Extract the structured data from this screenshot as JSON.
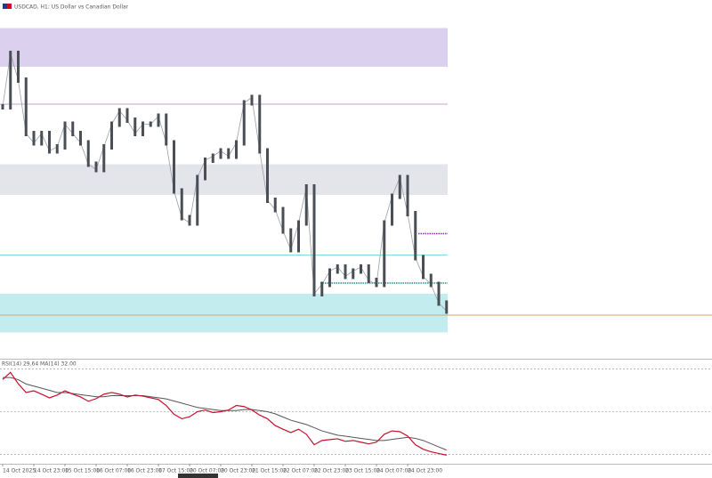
{
  "window": {
    "title": "USDCAD, H1: US Dollar vs Canadian Dollar"
  },
  "chart_data": [
    {
      "type": "candlestick",
      "categories": [
        "14 Oct 2025",
        null,
        null,
        null,
        "14 Oct 23:00",
        null,
        null,
        null,
        "15 Oct 15:00",
        null,
        null,
        null,
        "16 Oct 07:00",
        null,
        null,
        null,
        "16 Oct 23:00",
        null,
        null,
        null,
        "17 Oct 15:00",
        null,
        null,
        null,
        "20 Oct 07:00",
        null,
        null,
        null,
        "20 Oct 23:00",
        null,
        null,
        null,
        "21 Oct 15:00",
        null,
        null,
        null,
        "22 Oct 07:00",
        null,
        null,
        null,
        "22 Oct 23:00",
        null,
        null,
        null,
        "23 Oct 15:00",
        null,
        null,
        null,
        "24 Oct 07:00",
        null,
        null,
        null,
        "24 Oct 23:00",
        null,
        null,
        null,
        null,
        null
      ],
      "values": [
        1.407,
        1.411,
        1.409,
        1.405,
        1.4043,
        1.405,
        1.4037,
        1.404,
        1.4057,
        1.405,
        1.4043,
        1.4027,
        1.4023,
        1.404,
        1.4057,
        1.4067,
        1.406,
        1.405,
        1.4057,
        1.4057,
        1.4063,
        1.4043,
        1.4007,
        1.3987,
        1.3983,
        1.4017,
        1.403,
        1.4033,
        1.4037,
        1.4033,
        1.4043,
        1.4073,
        1.4077,
        1.4037,
        1.4,
        1.3993,
        1.3977,
        1.3963,
        1.3983,
        1.401,
        1.393,
        1.3937,
        1.3947,
        1.395,
        1.3943,
        1.3947,
        1.395,
        1.394,
        1.3937,
        1.3983,
        1.4003,
        1.4017,
        1.399,
        1.3957,
        1.3943,
        1.3937,
        1.3923,
        1.3917
      ],
      "color": "#4a4f55",
      "ylim": [
        1.39,
        1.413
      ],
      "zones": [
        {
          "from": 1.41,
          "to": 1.4129,
          "color": "#dcd0ef"
        },
        {
          "from": 1.4004,
          "to": 1.4027,
          "color": "#e4e5ea"
        },
        {
          "from": 1.3901,
          "to": 1.393,
          "color": "#c2ecee"
        }
      ],
      "levels": [
        {
          "value": 1.4072,
          "color": "#c9a6c9",
          "dashed": false,
          "full_width": false
        },
        {
          "value": 1.3959,
          "color": "#7fdbe0",
          "dashed": false,
          "full_width": false
        },
        {
          "value": 1.3914,
          "color": "#d9a56a",
          "dashed": false,
          "full_width": true
        },
        {
          "value": 1.3975,
          "color": "#8b2fa8",
          "dashed": true,
          "full_width": false
        },
        {
          "value": 1.3938,
          "color": "#2f8f8f",
          "dashed": true,
          "full_width": false
        }
      ]
    },
    {
      "type": "line",
      "label": "RSI(14) 29.64 MA(14) 32.00",
      "values": [
        65.1,
        68.4,
        63.1,
        59.0,
        59.8,
        58.2,
        56.5,
        57.8,
        59.8,
        58.2,
        56.9,
        54.9,
        56.1,
        58.2,
        59.0,
        58.2,
        56.9,
        57.8,
        57.3,
        56.5,
        55.7,
        52.9,
        48.8,
        46.7,
        47.6,
        50.0,
        50.8,
        49.6,
        50.0,
        50.8,
        52.9,
        52.4,
        50.8,
        48.4,
        46.7,
        43.5,
        41.8,
        40.2,
        41.8,
        39.4,
        34.5,
        36.5,
        36.9,
        37.3,
        36.1,
        36.5,
        35.7,
        34.9,
        35.7,
        39.4,
        41.0,
        40.6,
        38.6,
        34.5,
        32.4,
        31.2,
        30.4,
        29.6
      ],
      "color": "#c8102e",
      "signal_values": [
        66,
        66,
        65,
        63,
        62,
        61,
        60,
        59,
        59,
        58.5,
        58,
        57.5,
        57,
        57,
        57.5,
        57.5,
        57.5,
        57.5,
        57.5,
        57,
        56.5,
        56,
        55,
        54,
        53,
        52,
        51.5,
        51,
        50.5,
        50.5,
        50.5,
        51,
        51,
        50.5,
        50,
        49,
        47.5,
        46,
        45,
        44,
        42.5,
        41,
        40,
        39,
        38.5,
        38,
        37.5,
        37,
        36.5,
        36.5,
        37,
        37.5,
        38,
        37.5,
        36.5,
        35,
        33.5,
        32
      ],
      "signal_color": "#555555",
      "ylim": [
        26,
        74
      ],
      "levels": [
        70,
        50,
        30
      ]
    }
  ]
}
